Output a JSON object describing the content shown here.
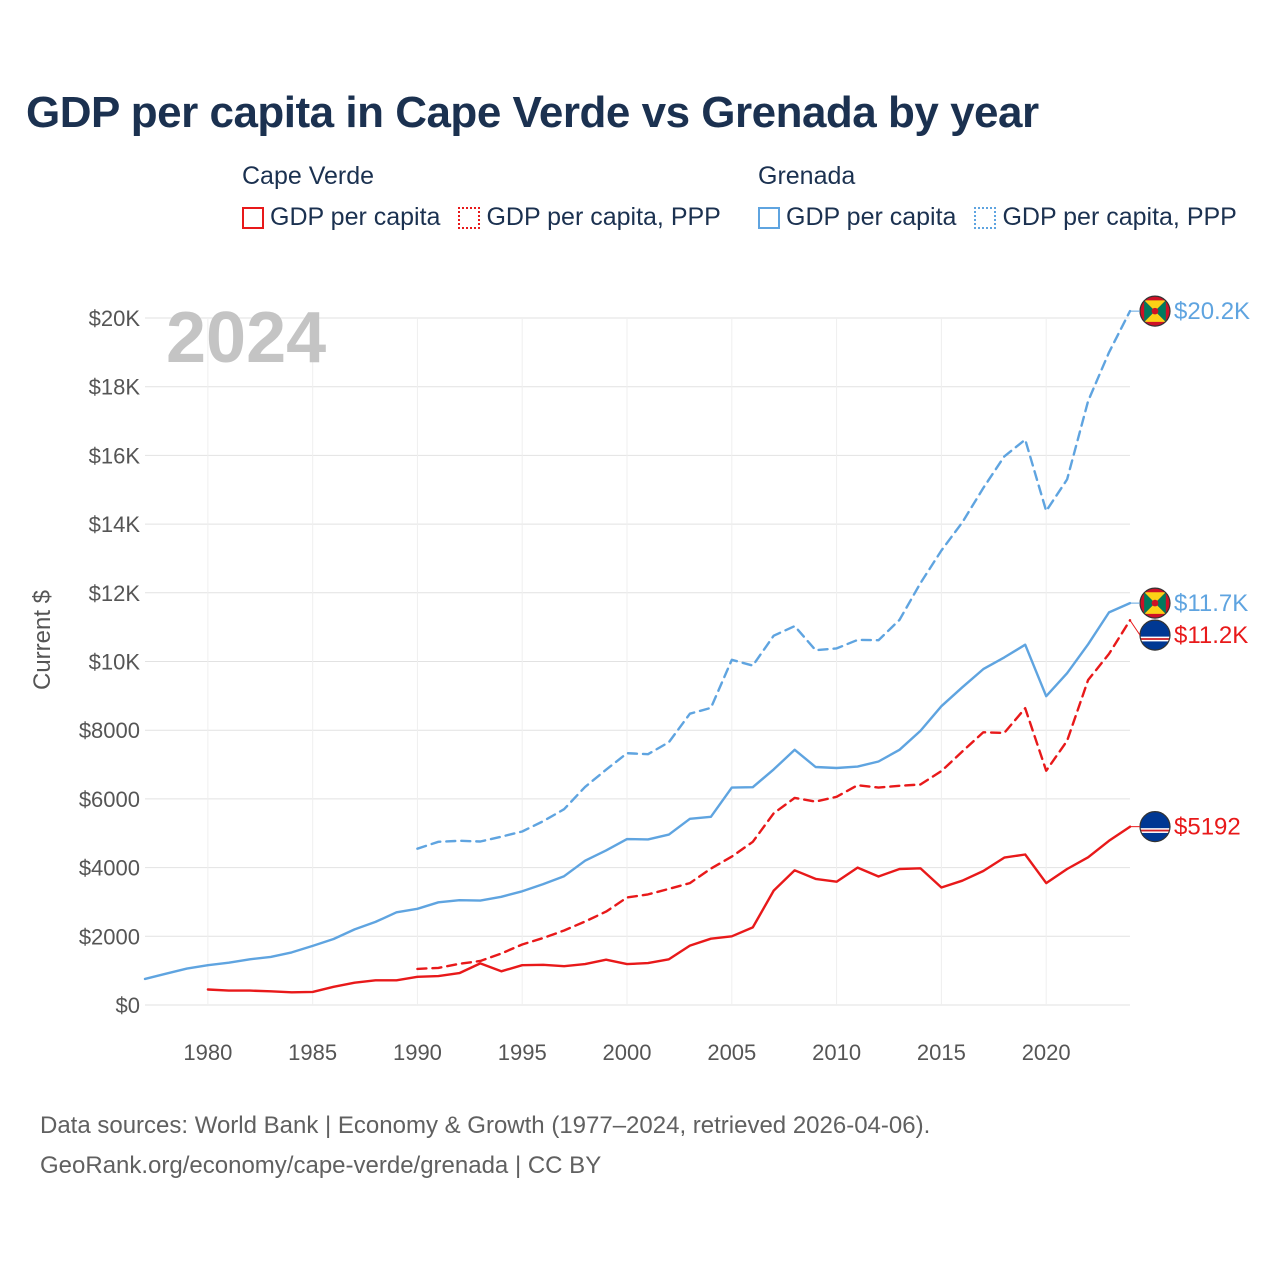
{
  "title": "GDP per capita in Cape Verde vs Grenada by year",
  "legend": {
    "groups": [
      {
        "name": "Cape Verde",
        "color": "#e8191a",
        "items": [
          {
            "label": "GDP per capita",
            "style": "solid"
          },
          {
            "label": "GDP per capita, PPP",
            "style": "dotted"
          }
        ]
      },
      {
        "name": "Grenada",
        "color": "#5fa4e0",
        "items": [
          {
            "label": "GDP per capita",
            "style": "solid"
          },
          {
            "label": "GDP per capita, PPP",
            "style": "dotted"
          }
        ]
      }
    ]
  },
  "year_watermark": "2024",
  "footer": {
    "line1": "Data sources: World Bank | Economy & Growth (1977–2024, retrieved 2026-04-06).",
    "line2": "GeoRank.org/economy/cape-verde/grenada | CC BY"
  },
  "chart_data": {
    "type": "line",
    "title": "GDP per capita in Cape Verde vs Grenada by year",
    "xlabel": "",
    "ylabel": "Current $",
    "xlim": [
      1977,
      2024
    ],
    "ylim": [
      0,
      20000
    ],
    "x_ticks": [
      1980,
      1985,
      1990,
      1995,
      2000,
      2005,
      2010,
      2015,
      2020
    ],
    "y_ticks": [
      {
        "value": 0,
        "label": "$0"
      },
      {
        "value": 2000,
        "label": "$2000"
      },
      {
        "value": 4000,
        "label": "$4000"
      },
      {
        "value": 6000,
        "label": "$6000"
      },
      {
        "value": 8000,
        "label": "$8000"
      },
      {
        "value": 10000,
        "label": "$10K"
      },
      {
        "value": 12000,
        "label": "$12K"
      },
      {
        "value": 14000,
        "label": "$14K"
      },
      {
        "value": 16000,
        "label": "$16K"
      },
      {
        "value": 18000,
        "label": "$18K"
      },
      {
        "value": 20000,
        "label": "$20K"
      }
    ],
    "grid": true,
    "series": [
      {
        "name": "Grenada GDP per capita, PPP",
        "country": "Grenada",
        "color": "#5fa4e0",
        "dash": "dashed",
        "start_year": 1990,
        "end_label": "$20.2K",
        "flag": "grenada",
        "values": [
          4550,
          4750,
          4780,
          4760,
          4900,
          5050,
          5350,
          5700,
          6350,
          6850,
          7330,
          7300,
          7650,
          8480,
          8650,
          10050,
          9880,
          10750,
          11030,
          10330,
          10380,
          10630,
          10620,
          11210,
          12280,
          13230,
          14050,
          15050,
          15970,
          16460,
          14380,
          15300,
          17580,
          19000,
          20200
        ]
      },
      {
        "name": "Grenada GDP per capita",
        "country": "Grenada",
        "color": "#5fa4e0",
        "dash": "solid",
        "start_year": 1977,
        "end_label": "$11.7K",
        "flag": "grenada",
        "values": [
          760,
          910,
          1060,
          1160,
          1230,
          1330,
          1400,
          1530,
          1720,
          1920,
          2200,
          2420,
          2700,
          2800,
          2990,
          3050,
          3040,
          3150,
          3310,
          3520,
          3750,
          4200,
          4500,
          4830,
          4820,
          4960,
          5420,
          5480,
          6330,
          6340,
          6860,
          7430,
          6930,
          6900,
          6940,
          7090,
          7430,
          7980,
          8700,
          9250,
          9780,
          10120,
          10490,
          8990,
          9660,
          10500,
          11430,
          11700
        ]
      },
      {
        "name": "Cape Verde GDP per capita, PPP",
        "country": "Cape Verde",
        "color": "#e8191a",
        "dash": "dashed",
        "start_year": 1990,
        "end_label": "$11.2K",
        "flag": "cape-verde",
        "values": [
          1050,
          1080,
          1200,
          1280,
          1500,
          1760,
          1950,
          2170,
          2430,
          2720,
          3130,
          3220,
          3380,
          3550,
          3970,
          4320,
          4750,
          5580,
          6030,
          5920,
          6060,
          6400,
          6330,
          6380,
          6420,
          6810,
          7380,
          7940,
          7920,
          8640,
          6820,
          7690,
          9460,
          10220,
          11200
        ]
      },
      {
        "name": "Cape Verde GDP per capita",
        "country": "Cape Verde",
        "color": "#e8191a",
        "dash": "solid",
        "start_year": 1980,
        "end_label": "$5192",
        "flag": "cape-verde",
        "values": [
          450,
          420,
          420,
          400,
          370,
          380,
          530,
          650,
          720,
          720,
          820,
          840,
          930,
          1210,
          980,
          1160,
          1170,
          1130,
          1190,
          1320,
          1190,
          1220,
          1330,
          1730,
          1930,
          2000,
          2260,
          3330,
          3920,
          3670,
          3590,
          4000,
          3740,
          3960,
          3980,
          3420,
          3620,
          3900,
          4290,
          4380,
          3550,
          3960,
          4300,
          4780,
          5192
        ]
      }
    ]
  }
}
